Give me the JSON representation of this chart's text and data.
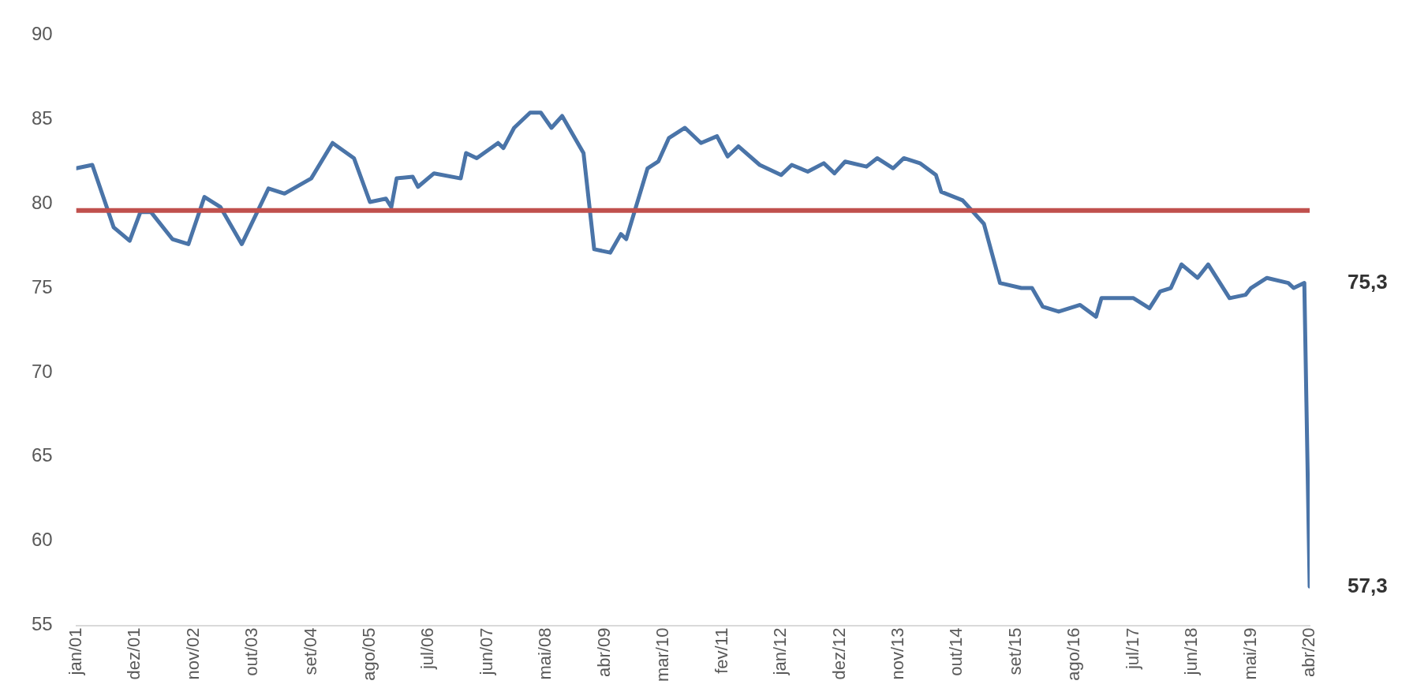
{
  "chart_data": {
    "type": "line",
    "x": [
      "2001-01",
      "2001-04",
      "2001-08",
      "2001-11",
      "2002-01",
      "2002-03",
      "2002-07",
      "2002-10",
      "2003-01",
      "2003-04",
      "2003-08",
      "2004-01",
      "2004-04",
      "2004-09",
      "2005-01",
      "2005-05",
      "2005-08",
      "2005-11",
      "2005-12",
      "2006-01",
      "2006-04",
      "2006-05",
      "2006-08",
      "2007-01",
      "2007-02",
      "2007-04",
      "2007-08",
      "2007-09",
      "2007-11",
      "2008-02",
      "2008-04",
      "2008-06",
      "2008-08",
      "2008-12",
      "2009-02",
      "2009-05",
      "2009-07",
      "2009-08",
      "2009-12",
      "2010-02",
      "2010-04",
      "2010-07",
      "2010-10",
      "2011-01",
      "2011-03",
      "2011-05",
      "2011-09",
      "2012-01",
      "2012-03",
      "2012-06",
      "2012-09",
      "2012-11",
      "2013-01",
      "2013-05",
      "2013-07",
      "2013-10",
      "2013-12",
      "2014-03",
      "2014-06",
      "2014-07",
      "2014-11",
      "2015-03",
      "2015-06",
      "2015-10",
      "2015-12",
      "2016-02",
      "2016-05",
      "2016-09",
      "2016-12",
      "2017-01",
      "2017-07",
      "2017-10",
      "2017-12",
      "2018-02",
      "2018-04",
      "2018-07",
      "2018-09",
      "2019-01",
      "2019-04",
      "2019-05",
      "2019-08",
      "2019-12",
      "2020-01",
      "2020-03",
      "2020-04"
    ],
    "series": [
      {
        "color": "#4a74a8",
        "values": [
          82.1,
          82.3,
          78.6,
          77.8,
          79.5,
          79.5,
          77.9,
          77.6,
          80.4,
          79.8,
          77.6,
          80.9,
          80.6,
          81.5,
          83.6,
          82.7,
          80.1,
          80.3,
          79.8,
          81.5,
          81.6,
          81.0,
          81.8,
          81.5,
          83.0,
          82.7,
          83.6,
          83.3,
          84.5,
          85.4,
          85.4,
          84.5,
          85.2,
          83.0,
          77.3,
          77.1,
          78.2,
          77.9,
          82.1,
          82.5,
          83.9,
          84.5,
          83.6,
          84.0,
          82.8,
          83.4,
          82.3,
          81.7,
          82.3,
          81.9,
          82.4,
          81.8,
          82.5,
          82.2,
          82.7,
          82.1,
          82.7,
          82.4,
          81.7,
          80.7,
          80.2,
          78.8,
          75.3,
          75.0,
          75.0,
          73.9,
          73.6,
          74.0,
          73.3,
          74.4,
          74.4,
          73.8,
          74.8,
          75.0,
          76.4,
          75.6,
          76.4,
          74.4,
          74.6,
          75.0,
          75.6,
          75.3,
          75.0,
          75.3,
          57.3
        ]
      }
    ],
    "xlim": [
      "2001-01",
      "2020-04"
    ],
    "xticks": [
      {
        "value": "2001-01",
        "label": "jan/01"
      },
      {
        "value": "2001-12",
        "label": "dez/01"
      },
      {
        "value": "2002-11",
        "label": "nov/02"
      },
      {
        "value": "2003-10",
        "label": "out/03"
      },
      {
        "value": "2004-09",
        "label": "set/04"
      },
      {
        "value": "2005-08",
        "label": "ago/05"
      },
      {
        "value": "2006-07",
        "label": "jul/06"
      },
      {
        "value": "2007-06",
        "label": "jun/07"
      },
      {
        "value": "2008-05",
        "label": "mai/08"
      },
      {
        "value": "2009-04",
        "label": "abr/09"
      },
      {
        "value": "2010-03",
        "label": "mar/10"
      },
      {
        "value": "2011-02",
        "label": "fev/11"
      },
      {
        "value": "2012-01",
        "label": "jan/12"
      },
      {
        "value": "2012-12",
        "label": "dez/12"
      },
      {
        "value": "2013-11",
        "label": "nov/13"
      },
      {
        "value": "2014-10",
        "label": "out/14"
      },
      {
        "value": "2015-09",
        "label": "set/15"
      },
      {
        "value": "2016-08",
        "label": "ago/16"
      },
      {
        "value": "2017-07",
        "label": "jul/17"
      },
      {
        "value": "2018-06",
        "label": "jun/18"
      },
      {
        "value": "2019-05",
        "label": "mai/19"
      },
      {
        "value": "2020-04",
        "label": "abr/20"
      }
    ],
    "ylim": [
      55,
      90
    ],
    "yticks": [
      55,
      60,
      65,
      70,
      75,
      80,
      85,
      90
    ],
    "ref_lines": [
      {
        "axis": "y",
        "value": 79.6,
        "color": "#c0504d"
      }
    ],
    "annotations": [
      {
        "text": "75,3",
        "x": "2020-03",
        "y": 75.3
      },
      {
        "text": "57,3",
        "x": "2020-04",
        "y": 57.3
      }
    ],
    "grid": false,
    "legend": false,
    "marker": "none",
    "line_style": "solid"
  }
}
